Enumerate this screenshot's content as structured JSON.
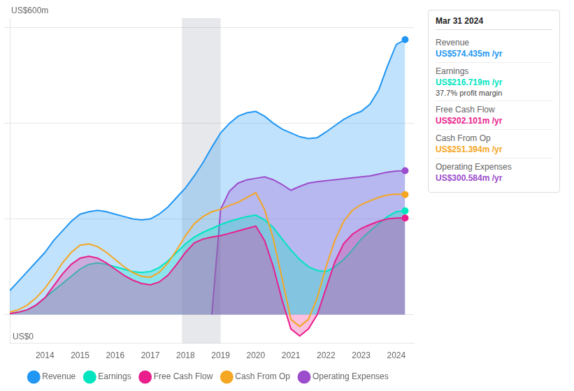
{
  "chart_data": {
    "type": "area",
    "xlim": [
      2013.0,
      2024.5
    ],
    "xticks": [
      2014,
      2015,
      2016,
      2017,
      2018,
      2019,
      2020,
      2021,
      2022,
      2023,
      2024
    ],
    "ylim": [
      -60,
      620
    ],
    "yticks": [
      0,
      200,
      400,
      600
    ],
    "grid": true,
    "tick_labels": "x",
    "legend": "bottom",
    "shaded_span": [
      2017.9,
      2019.0
    ],
    "annotations": [
      "US$600m",
      "US$0"
    ],
    "tooltip": {
      "title": "Mar 31 2024",
      "rows": [
        {
          "label": "Revenue",
          "value": "US$574.435m /yr",
          "color": "#2196f3"
        },
        {
          "label": "Earnings",
          "value": "US$216.719m /yr",
          "color": "#00e5c0",
          "note": "37.7% profit margin"
        },
        {
          "label": "Free Cash Flow",
          "value": "US$202.101m /yr",
          "color": "#e91e8c"
        },
        {
          "label": "Cash From Op",
          "value": "US$251.394m /yr",
          "color": "#f5a623"
        },
        {
          "label": "Operating Expenses",
          "value": "US$300.584m /yr",
          "color": "#9c4dcc"
        }
      ]
    },
    "series": [
      {
        "name": "Revenue",
        "color": "#2196f3",
        "x": [
          2013.0,
          2013.25,
          2013.5,
          2013.75,
          2014.0,
          2014.25,
          2014.5,
          2014.75,
          2015.0,
          2015.25,
          2015.5,
          2015.75,
          2016.0,
          2016.25,
          2016.5,
          2016.75,
          2017.0,
          2017.25,
          2017.5,
          2017.75,
          2018.0,
          2018.25,
          2018.5,
          2018.75,
          2019.0,
          2019.25,
          2019.5,
          2019.75,
          2020.0,
          2020.25,
          2020.5,
          2020.75,
          2021.0,
          2021.25,
          2021.5,
          2021.75,
          2022.0,
          2022.25,
          2022.5,
          2022.75,
          2023.0,
          2023.25,
          2023.5,
          2023.75,
          2024.0,
          2024.25
        ],
        "values": [
          50,
          70,
          90,
          110,
          130,
          155,
          175,
          195,
          210,
          215,
          218,
          215,
          210,
          205,
          200,
          198,
          200,
          210,
          225,
          245,
          265,
          290,
          318,
          350,
          380,
          400,
          415,
          422,
          425,
          415,
          400,
          388,
          380,
          372,
          368,
          370,
          382,
          395,
          408,
          418,
          425,
          440,
          470,
          520,
          565,
          575
        ]
      },
      {
        "name": "Earnings",
        "color": "#00e5c0",
        "x": [
          2013.0,
          2013.25,
          2013.5,
          2013.75,
          2014.0,
          2014.25,
          2014.5,
          2014.75,
          2015.0,
          2015.25,
          2015.5,
          2015.75,
          2016.0,
          2016.25,
          2016.5,
          2016.75,
          2017.0,
          2017.25,
          2017.5,
          2017.75,
          2018.0,
          2018.25,
          2018.5,
          2018.75,
          2019.0,
          2019.25,
          2019.5,
          2019.75,
          2020.0,
          2020.25,
          2020.5,
          2020.75,
          2021.0,
          2021.25,
          2021.5,
          2021.75,
          2022.0,
          2022.25,
          2022.5,
          2022.75,
          2023.0,
          2023.25,
          2023.5,
          2023.75,
          2024.0,
          2024.25
        ],
        "values": [
          2,
          5,
          10,
          20,
          35,
          50,
          65,
          80,
          95,
          105,
          108,
          105,
          100,
          95,
          90,
          88,
          90,
          98,
          112,
          130,
          148,
          162,
          172,
          180,
          188,
          195,
          200,
          205,
          208,
          198,
          182,
          158,
          135,
          115,
          100,
          92,
          90,
          100,
          115,
          135,
          158,
          175,
          190,
          205,
          215,
          217
        ]
      },
      {
        "name": "Free Cash Flow",
        "color": "#e91e8c",
        "x": [
          2013.0,
          2013.25,
          2013.5,
          2013.75,
          2014.0,
          2014.25,
          2014.5,
          2014.75,
          2015.0,
          2015.25,
          2015.5,
          2015.75,
          2016.0,
          2016.25,
          2016.5,
          2016.75,
          2017.0,
          2017.25,
          2017.5,
          2017.75,
          2018.0,
          2018.25,
          2018.5,
          2018.75,
          2019.0,
          2019.25,
          2019.5,
          2019.75,
          2020.0,
          2020.25,
          2020.5,
          2020.75,
          2021.0,
          2021.25,
          2021.5,
          2021.75,
          2022.0,
          2022.25,
          2022.5,
          2022.75,
          2023.0,
          2023.25,
          2023.5,
          2023.75,
          2024.0,
          2024.25
        ],
        "values": [
          2,
          5,
          10,
          20,
          35,
          60,
          85,
          105,
          118,
          122,
          118,
          108,
          95,
          82,
          72,
          65,
          62,
          68,
          82,
          105,
          130,
          150,
          158,
          162,
          165,
          170,
          175,
          180,
          185,
          155,
          100,
          30,
          -30,
          -45,
          -30,
          0,
          55,
          110,
          148,
          168,
          180,
          188,
          195,
          200,
          202,
          202
        ]
      },
      {
        "name": "Cash From Op",
        "color": "#f5a623",
        "type": "line",
        "x": [
          2013.0,
          2013.25,
          2013.5,
          2013.75,
          2014.0,
          2014.25,
          2014.5,
          2014.75,
          2015.0,
          2015.25,
          2015.5,
          2015.75,
          2016.0,
          2016.25,
          2016.5,
          2016.75,
          2017.0,
          2017.25,
          2017.5,
          2017.75,
          2018.0,
          2018.25,
          2018.5,
          2018.75,
          2019.0,
          2019.25,
          2019.5,
          2019.75,
          2020.0,
          2020.25,
          2020.5,
          2020.75,
          2021.0,
          2021.25,
          2021.5,
          2021.75,
          2022.0,
          2022.25,
          2022.5,
          2022.75,
          2023.0,
          2023.25,
          2023.5,
          2023.75,
          2024.0,
          2024.25
        ],
        "values": [
          5,
          10,
          20,
          35,
          55,
          80,
          108,
          130,
          145,
          148,
          142,
          130,
          115,
          100,
          88,
          80,
          78,
          88,
          108,
          135,
          165,
          190,
          205,
          215,
          220,
          228,
          235,
          245,
          255,
          220,
          158,
          75,
          -10,
          -25,
          -10,
          35,
          100,
          155,
          195,
          218,
          230,
          238,
          245,
          250,
          252,
          251
        ]
      },
      {
        "name": "Operating Expenses",
        "color": "#9c4dcc",
        "x": [
          2018.75,
          2019.0,
          2019.25,
          2019.5,
          2019.75,
          2020.0,
          2020.25,
          2020.5,
          2020.75,
          2021.0,
          2021.25,
          2021.5,
          2021.75,
          2022.0,
          2022.25,
          2022.5,
          2022.75,
          2023.0,
          2023.25,
          2023.5,
          2023.75,
          2024.0,
          2024.25
        ],
        "values": [
          0,
          220,
          258,
          275,
          282,
          285,
          288,
          282,
          272,
          260,
          268,
          275,
          278,
          280,
          282,
          284,
          286,
          288,
          290,
          294,
          298,
          300,
          301
        ]
      }
    ]
  }
}
